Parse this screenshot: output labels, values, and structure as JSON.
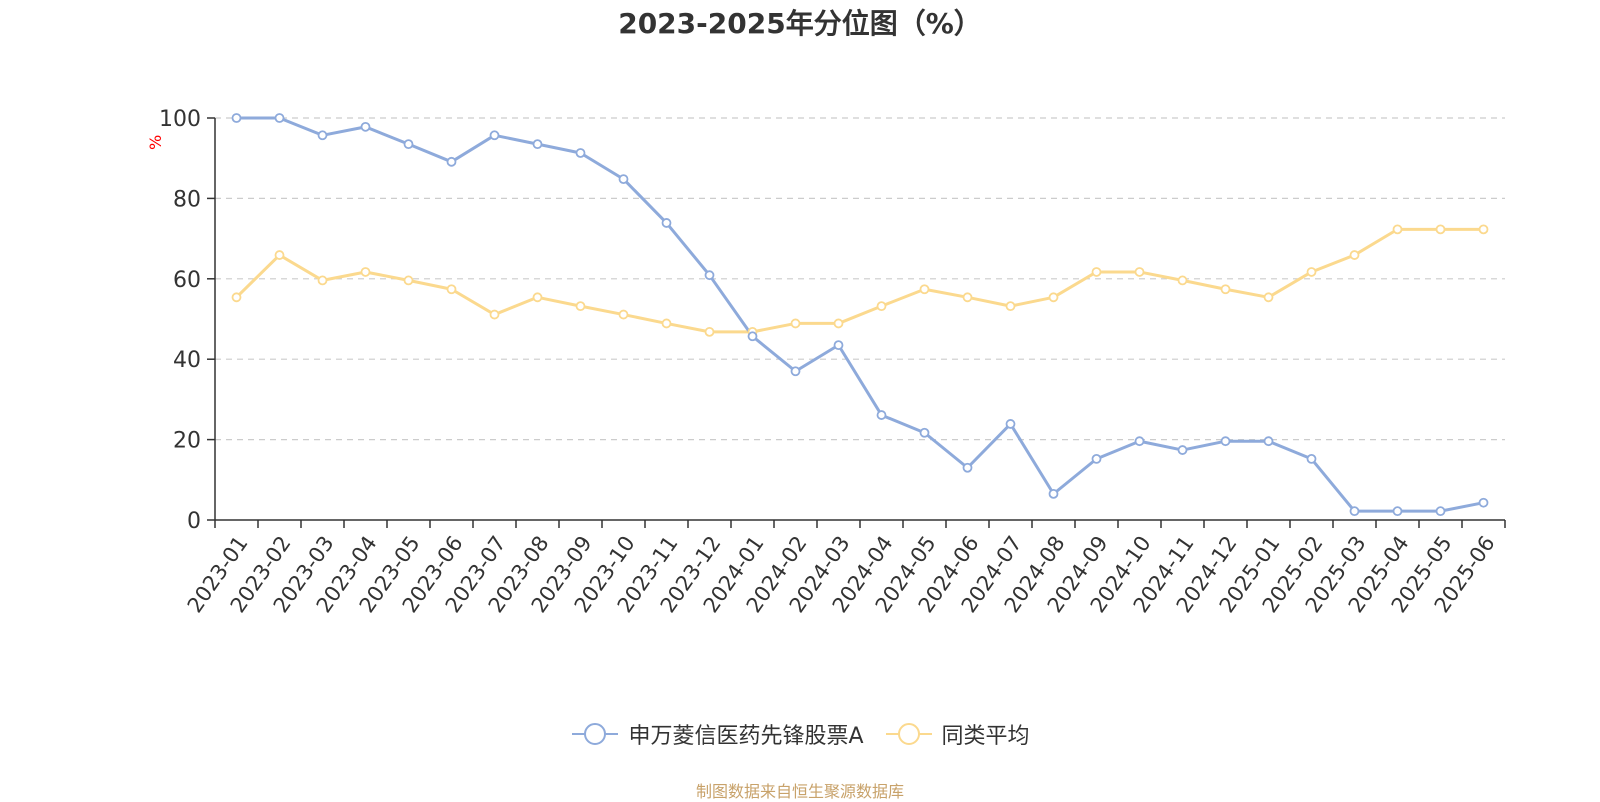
{
  "chart_data": {
    "type": "line",
    "title": "2023-2025年分位图（%）",
    "ylabel": "%",
    "ylim": [
      0,
      100
    ],
    "yticks": [
      0,
      20,
      40,
      60,
      80,
      100
    ],
    "grid": true,
    "legend_position": "bottom",
    "categories": [
      "2023-01",
      "2023-02",
      "2023-03",
      "2023-04",
      "2023-05",
      "2023-06",
      "2023-07",
      "2023-08",
      "2023-09",
      "2023-10",
      "2023-11",
      "2023-12",
      "2024-01",
      "2024-02",
      "2024-03",
      "2024-04",
      "2024-05",
      "2024-06",
      "2024-07",
      "2024-08",
      "2024-09",
      "2024-10",
      "2024-11",
      "2024-12",
      "2025-01",
      "2025-02",
      "2025-03",
      "2025-04",
      "2025-05",
      "2025-06"
    ],
    "series": [
      {
        "name": "申万菱信医药先锋股票A",
        "color": "#8eaadb",
        "values": [
          100,
          100,
          95.7,
          97.8,
          93.5,
          89.1,
          95.7,
          93.5,
          91.3,
          84.8,
          73.9,
          60.9,
          45.7,
          37.0,
          43.5,
          26.1,
          21.7,
          13.0,
          23.9,
          6.5,
          15.2,
          19.6,
          17.4,
          19.6,
          19.6,
          15.2,
          2.2,
          2.2,
          2.2,
          4.3
        ]
      },
      {
        "name": "同类平均",
        "color": "#fbd98e",
        "values": [
          55.4,
          65.9,
          59.6,
          61.7,
          59.6,
          57.4,
          51.1,
          55.4,
          53.2,
          51.1,
          48.9,
          46.8,
          46.8,
          48.9,
          48.9,
          53.2,
          57.4,
          55.4,
          53.2,
          55.4,
          61.7,
          61.7,
          59.6,
          57.4,
          55.4,
          61.7,
          65.9,
          72.3,
          72.3,
          72.3
        ]
      }
    ]
  },
  "source": "制图数据来自恒生聚源数据库"
}
